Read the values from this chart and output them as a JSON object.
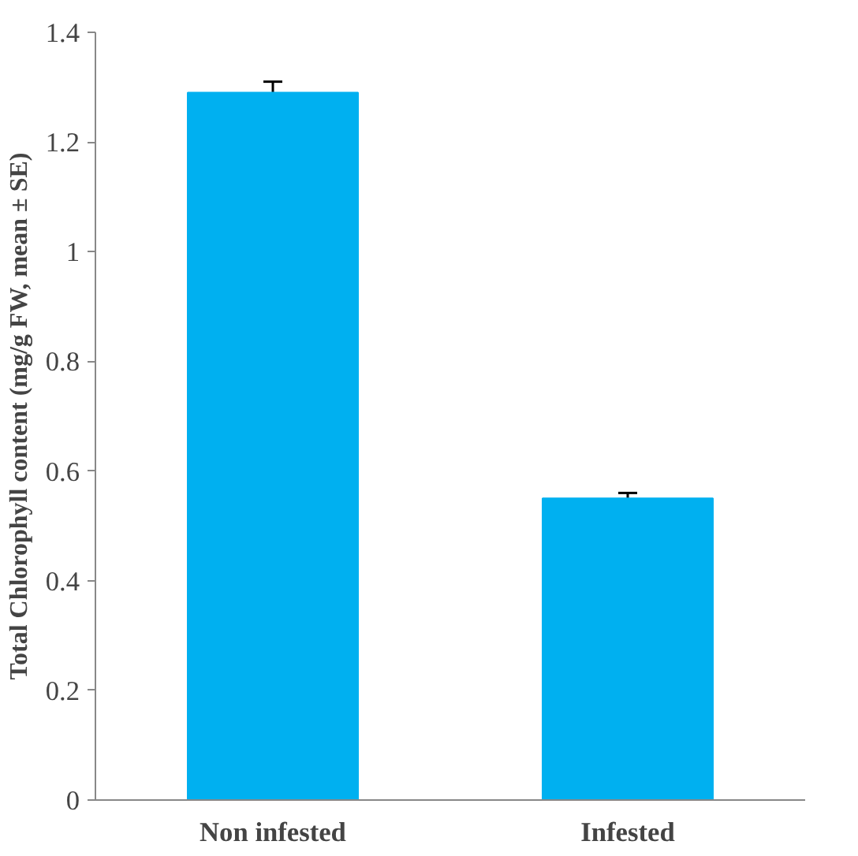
{
  "chart_data": {
    "type": "bar",
    "ylabel": "Total Chlorophyll content (mg/g FW, mean ± SE)",
    "categories": [
      "Non infested",
      "Infested"
    ],
    "values": [
      1.29,
      0.55
    ],
    "errors": [
      0.02,
      0.01
    ],
    "color": "#00b0f0",
    "ylim": [
      0,
      1.4
    ],
    "yticks": [
      0,
      0.2,
      0.4,
      0.6,
      0.8,
      1,
      1.2,
      1.4
    ],
    "grid": false
  }
}
